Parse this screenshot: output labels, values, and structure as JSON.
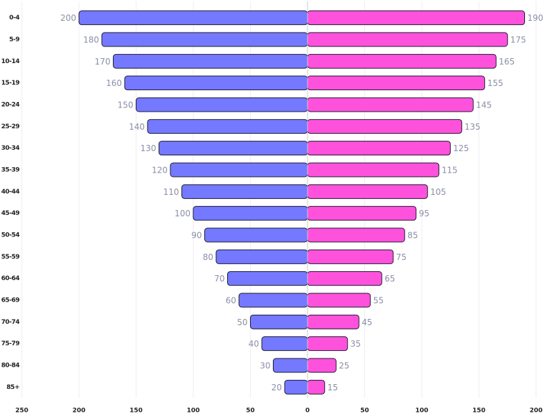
{
  "chart_data": {
    "type": "pyramid",
    "categories": [
      "0-4",
      "5-9",
      "10-14",
      "15-19",
      "20-24",
      "25-29",
      "30-34",
      "35-39",
      "40-44",
      "45-49",
      "50-54",
      "55-59",
      "60-64",
      "65-69",
      "70-74",
      "75-79",
      "80-84",
      "85+"
    ],
    "series": [
      {
        "color": "#7479ff",
        "values": [
          -200,
          -180,
          -170,
          -160,
          -150,
          -140,
          -130,
          -120,
          -110,
          -100,
          -90,
          -80,
          -70,
          -60,
          -50,
          -40,
          -30,
          -20
        ],
        "value_labels": [
          "200",
          "180",
          "170",
          "160",
          "150",
          "140",
          "130",
          "120",
          "110",
          "100",
          "90",
          "80",
          "70",
          "60",
          "50",
          "40",
          "30",
          "20"
        ]
      },
      {
        "color": "#ff52dc",
        "values": [
          190,
          175,
          165,
          155,
          145,
          135,
          125,
          115,
          105,
          95,
          85,
          75,
          65,
          55,
          45,
          35,
          25,
          15
        ]
      }
    ],
    "xlim": [
      -250,
      200
    ],
    "xticks": [
      {
        "value": -250,
        "label": "250"
      },
      {
        "value": -200,
        "label": "200"
      },
      {
        "value": -150,
        "label": "150"
      },
      {
        "value": -100,
        "label": "100"
      },
      {
        "value": -50,
        "label": "50"
      },
      0,
      50,
      100,
      150,
      200
    ],
    "grid": true
  }
}
